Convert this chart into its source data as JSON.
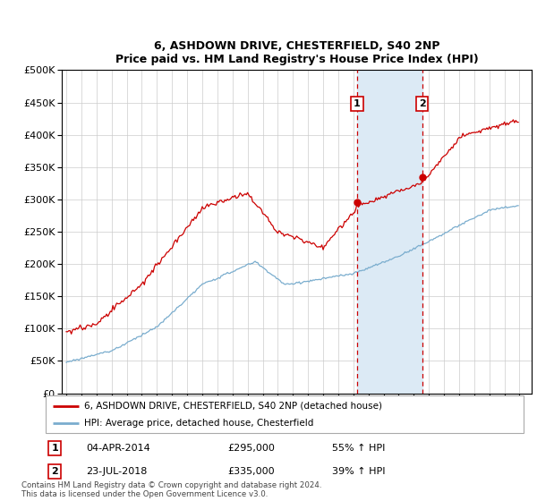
{
  "title": "6, ASHDOWN DRIVE, CHESTERFIELD, S40 2NP",
  "subtitle": "Price paid vs. HM Land Registry's House Price Index (HPI)",
  "legend_line1": "6, ASHDOWN DRIVE, CHESTERFIELD, S40 2NP (detached house)",
  "legend_line2": "HPI: Average price, detached house, Chesterfield",
  "sale1_label": "1",
  "sale1_date": "04-APR-2014",
  "sale1_price": "£295,000",
  "sale1_hpi": "55% ↑ HPI",
  "sale2_label": "2",
  "sale2_date": "23-JUL-2018",
  "sale2_price": "£335,000",
  "sale2_hpi": "39% ↑ HPI",
  "footer": "Contains HM Land Registry data © Crown copyright and database right 2024.\nThis data is licensed under the Open Government Licence v3.0.",
  "sale1_year": 2014.25,
  "sale2_year": 2018.55,
  "sale1_price_val": 295000,
  "sale2_price_val": 335000,
  "red_color": "#cc0000",
  "blue_color": "#7aadce",
  "shade_color": "#dceaf5",
  "ylim_min": 0,
  "ylim_max": 500000,
  "xlim_min": 1994.7,
  "xlim_max": 2025.8
}
